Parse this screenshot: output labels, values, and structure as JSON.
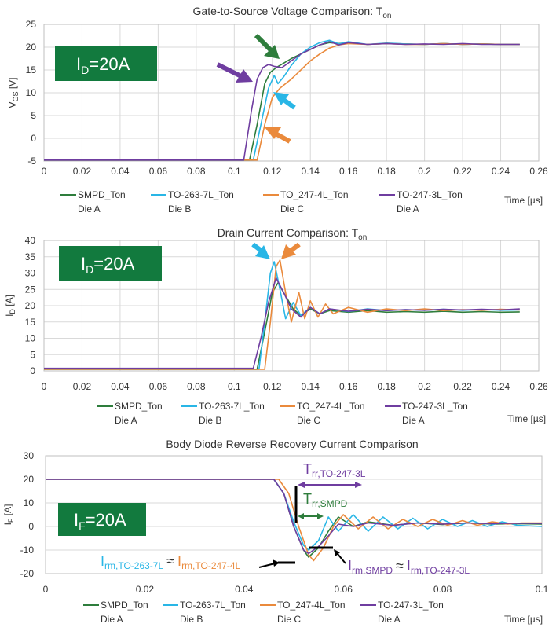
{
  "colors": {
    "SMPD": "#2e7d3c",
    "TO263": "#29b6e6",
    "TO247_4L": "#ea8a3c",
    "TO247_3L": "#6f3da0",
    "badge": "#127a3e",
    "black": "#000000"
  },
  "chart_data": [
    {
      "type": "line",
      "title": "Gate-to-Source Voltage Comparison: T",
      "title_sub": "on",
      "xlabel": "Time [µs]",
      "ylabel_main": "V",
      "ylabel_sub": "GS",
      "ylabel_tail": " [V]",
      "xlim": [
        0,
        0.26
      ],
      "ylim": [
        -5,
        25
      ],
      "xticks": [
        "0",
        "0.02",
        "0.04",
        "0.06",
        "0.08",
        "0.1",
        "0.12",
        "0.14",
        "0.16",
        "0.18",
        "0.2",
        "0.22",
        "0.24",
        "0.26"
      ],
      "xtick_values": [
        0,
        0.02,
        0.04,
        0.06,
        0.08,
        0.1,
        0.12,
        0.14,
        0.16,
        0.18,
        0.2,
        0.22,
        0.24,
        0.26
      ],
      "yticks": [
        "-5",
        "0",
        "5",
        "10",
        "15",
        "20",
        "25"
      ],
      "ytick_values": [
        -5,
        0,
        5,
        10,
        15,
        20,
        25
      ],
      "badge": {
        "main": "I",
        "sub": "D",
        "tail": "=20A"
      },
      "series": [
        {
          "name": "SMPD_Ton",
          "die": "Die A",
          "color_key": "SMPD",
          "x": [
            0,
            0.108,
            0.112,
            0.116,
            0.119,
            0.122,
            0.126,
            0.13,
            0.135,
            0.14,
            0.145,
            0.15,
            0.155,
            0.16,
            0.17,
            0.18,
            0.19,
            0.2,
            0.21,
            0.22,
            0.23,
            0.24,
            0.25
          ],
          "y": [
            -4.8,
            -4.8,
            3,
            12,
            14.5,
            15.5,
            16.5,
            17.5,
            18.5,
            19.5,
            20.5,
            21,
            20.8,
            21,
            20.6,
            20.8,
            20.7,
            20.6,
            20.8,
            20.6,
            20.7,
            20.6,
            20.6
          ]
        },
        {
          "name": "TO-263-7L_Ton",
          "die": "Die B",
          "color_key": "TO263",
          "x": [
            0,
            0.11,
            0.114,
            0.118,
            0.121,
            0.123,
            0.126,
            0.13,
            0.135,
            0.14,
            0.145,
            0.15,
            0.155,
            0.16,
            0.17,
            0.18,
            0.19,
            0.2,
            0.21,
            0.22,
            0.23,
            0.24,
            0.25
          ],
          "y": [
            -4.8,
            -4.8,
            3,
            11,
            13.8,
            12,
            13.5,
            16,
            18.5,
            20,
            21,
            21.5,
            20.7,
            21.2,
            20.6,
            20.9,
            20.7,
            20.6,
            20.8,
            20.6,
            20.7,
            20.6,
            20.6
          ]
        },
        {
          "name": "TO_247-4L_Ton",
          "die": "Die C",
          "color_key": "TO247_4L",
          "x": [
            0,
            0.112,
            0.116,
            0.12,
            0.124,
            0.127,
            0.13,
            0.135,
            0.14,
            0.145,
            0.15,
            0.155,
            0.16,
            0.17,
            0.18,
            0.19,
            0.2,
            0.21,
            0.22,
            0.23,
            0.24,
            0.25
          ],
          "y": [
            -4.8,
            -4.8,
            3,
            9,
            11,
            12,
            13,
            15,
            17,
            18.5,
            19.8,
            20.5,
            20.8,
            20.6,
            20.8,
            20.6,
            20.6,
            20.8,
            20.6,
            20.7,
            20.6,
            20.6
          ]
        },
        {
          "name": "TO-247-3L_Ton",
          "die": "Die A",
          "color_key": "TO247_3L",
          "x": [
            0,
            0.105,
            0.109,
            0.112,
            0.115,
            0.118,
            0.121,
            0.125,
            0.13,
            0.135,
            0.14,
            0.145,
            0.15,
            0.155,
            0.16,
            0.17,
            0.18,
            0.19,
            0.2,
            0.21,
            0.22,
            0.23,
            0.24,
            0.25
          ],
          "y": [
            -4.8,
            -4.8,
            6,
            13,
            15.5,
            16.2,
            15.8,
            15.5,
            17,
            18.5,
            19.5,
            20.5,
            21.2,
            20.5,
            21,
            20.6,
            20.8,
            20.6,
            20.7,
            20.6,
            20.8,
            20.6,
            20.6,
            20.6
          ]
        }
      ]
    },
    {
      "type": "line",
      "title": "Drain Current Comparison: T",
      "title_sub": "on",
      "xlabel": "Time [µs]",
      "ylabel_main": "I",
      "ylabel_sub": "D",
      "ylabel_tail": " [A]",
      "xlim": [
        0,
        0.26
      ],
      "ylim": [
        0,
        40
      ],
      "xticks": [
        "0",
        "0.02",
        "0.04",
        "0.06",
        "0.08",
        "0.1",
        "0.12",
        "0.14",
        "0.16",
        "0.18",
        "0.2",
        "0.22",
        "0.24",
        "0.26"
      ],
      "xtick_values": [
        0,
        0.02,
        0.04,
        0.06,
        0.08,
        0.1,
        0.12,
        0.14,
        0.16,
        0.18,
        0.2,
        0.22,
        0.24,
        0.26
      ],
      "yticks": [
        "0",
        "5",
        "10",
        "15",
        "20",
        "25",
        "30",
        "35",
        "40"
      ],
      "ytick_values": [
        0,
        5,
        10,
        15,
        20,
        25,
        30,
        35,
        40
      ],
      "badge": {
        "main": "I",
        "sub": "D",
        "tail": "=20A"
      },
      "series": [
        {
          "name": "SMPD_Ton",
          "die": "Die A",
          "color_key": "SMPD",
          "x": [
            0,
            0.112,
            0.116,
            0.12,
            0.123,
            0.127,
            0.131,
            0.135,
            0.14,
            0.145,
            0.15,
            0.16,
            0.17,
            0.18,
            0.19,
            0.2,
            0.21,
            0.22,
            0.23,
            0.24,
            0.25
          ],
          "y": [
            0.5,
            0.5,
            12,
            24,
            27,
            23,
            19,
            17,
            19,
            17.5,
            18.5,
            18,
            18.5,
            18,
            18.2,
            18,
            18.3,
            18,
            18.2,
            18,
            18.1
          ]
        },
        {
          "name": "TO-263-7L_Ton",
          "die": "Die B",
          "color_key": "TO263",
          "x": [
            0,
            0.113,
            0.116,
            0.119,
            0.121,
            0.124,
            0.127,
            0.131,
            0.135,
            0.14,
            0.145,
            0.15,
            0.16,
            0.17,
            0.18,
            0.19,
            0.2,
            0.21,
            0.22,
            0.23,
            0.24,
            0.25
          ],
          "y": [
            0.5,
            0.5,
            15,
            30,
            33.5,
            25,
            16,
            21,
            17,
            19.5,
            17.5,
            19,
            18.2,
            19,
            18.5,
            18.8,
            18.6,
            18.9,
            18.6,
            18.8,
            18.6,
            18.7
          ]
        },
        {
          "name": "TO_247-4L_Ton",
          "die": "Die C",
          "color_key": "TO247_4L",
          "x": [
            0,
            0.116,
            0.119,
            0.122,
            0.124,
            0.127,
            0.13,
            0.134,
            0.137,
            0.14,
            0.144,
            0.148,
            0.152,
            0.16,
            0.17,
            0.18,
            0.19,
            0.2,
            0.21,
            0.22,
            0.23,
            0.24,
            0.25
          ],
          "y": [
            0.5,
            0.5,
            15,
            32,
            34,
            24,
            15,
            24,
            16,
            21.5,
            16.5,
            20.5,
            17.5,
            19.5,
            18,
            19,
            18.5,
            19,
            18.5,
            18.8,
            18.6,
            18.9,
            18.7
          ]
        },
        {
          "name": "TO-247-3L_Ton",
          "die": "Die A",
          "color_key": "TO247_3L",
          "x": [
            0,
            0.11,
            0.114,
            0.118,
            0.122,
            0.126,
            0.13,
            0.135,
            0.14,
            0.145,
            0.15,
            0.16,
            0.17,
            0.18,
            0.19,
            0.2,
            0.21,
            0.22,
            0.23,
            0.24,
            0.25
          ],
          "y": [
            0.8,
            0.8,
            10,
            21,
            28.5,
            24,
            19,
            16.5,
            19.5,
            17.5,
            19,
            18.3,
            18.9,
            18.5,
            18.8,
            18.6,
            18.9,
            18.7,
            18.9,
            18.7,
            19
          ]
        }
      ]
    },
    {
      "type": "line",
      "title": "Body Diode Reverse Recovery Current Comparison",
      "xlabel": "Time [µs]",
      "ylabel_main": "I",
      "ylabel_sub": "F",
      "ylabel_tail": " [A]",
      "xlim": [
        0,
        0.1
      ],
      "ylim": [
        -20,
        30
      ],
      "xticks": [
        "0",
        "0.02",
        "0.04",
        "0.06",
        "0.08",
        "0.1"
      ],
      "xtick_values": [
        0,
        0.02,
        0.04,
        0.06,
        0.08,
        0.1
      ],
      "yticks": [
        "-20",
        "-10",
        "0",
        "10",
        "20",
        "30"
      ],
      "ytick_values": [
        -20,
        -10,
        0,
        10,
        20,
        30
      ],
      "badge": {
        "main": "I",
        "sub": "F",
        "tail": "=20A"
      },
      "series": [
        {
          "name": "SMPD_Ton",
          "die": "Die A",
          "color_key": "SMPD",
          "x": [
            0,
            0.046,
            0.048,
            0.05,
            0.052,
            0.053,
            0.055,
            0.057,
            0.059,
            0.062,
            0.065,
            0.07,
            0.075,
            0.08,
            0.085,
            0.09,
            0.095,
            0.1
          ],
          "y": [
            20,
            20,
            14,
            0,
            -10,
            -13,
            -9,
            -2,
            4,
            0,
            2,
            0.5,
            1.5,
            0.8,
            1.5,
            1,
            1.2,
            1
          ]
        },
        {
          "name": "TO-263-7L_Ton",
          "die": "Die B",
          "color_key": "TO263",
          "x": [
            0,
            0.046,
            0.048,
            0.05,
            0.052,
            0.053,
            0.055,
            0.057,
            0.059,
            0.062,
            0.065,
            0.068,
            0.071,
            0.074,
            0.077,
            0.08,
            0.083,
            0.086,
            0.089,
            0.092,
            0.095,
            0.1
          ],
          "y": [
            20,
            20,
            14,
            2,
            -8,
            -10,
            -6,
            4,
            -2,
            5,
            -2,
            4,
            -1,
            3.5,
            -1,
            3,
            0,
            2.5,
            0,
            2,
            0.5,
            0
          ]
        },
        {
          "name": "TO_247-4L_Ton",
          "die": "Die C",
          "color_key": "TO247_4L",
          "x": [
            0,
            0.047,
            0.049,
            0.051,
            0.053,
            0.054,
            0.056,
            0.058,
            0.06,
            0.063,
            0.066,
            0.069,
            0.072,
            0.075,
            0.078,
            0.081,
            0.084,
            0.087,
            0.09,
            0.093,
            0.096,
            0.1
          ],
          "y": [
            20,
            20,
            14,
            0,
            -12,
            -14.5,
            -9,
            0,
            5,
            -1,
            4,
            -1,
            3,
            0,
            3,
            0.5,
            2.5,
            0.5,
            2,
            1,
            1.5,
            1.5
          ]
        },
        {
          "name": "TO-247-3L_Ton",
          "die": "Die A",
          "color_key": "TO247_3L",
          "x": [
            0,
            0.046,
            0.048,
            0.05,
            0.052,
            0.053,
            0.055,
            0.057,
            0.059,
            0.062,
            0.065,
            0.07,
            0.075,
            0.08,
            0.085,
            0.09,
            0.095,
            0.1
          ],
          "y": [
            20,
            20,
            14,
            0,
            -10,
            -11.5,
            -8.5,
            -4,
            1,
            0,
            1.5,
            0.5,
            1.5,
            1,
            1.5,
            1.2,
            1.4,
            1.3
          ]
        }
      ]
    }
  ],
  "annotations": {
    "trr_tol_main": "T",
    "trr_tol_sub": "rr,TO-247-3L",
    "trr_smpd_main": "T",
    "trr_smpd_sub": "rr,SMPD",
    "irm_left_a_main": "I",
    "irm_left_a_sub": "rm,TO-263-7L",
    "irm_approx_1": "≈",
    "irm_left_b_main": "I",
    "irm_left_b_sub": "rm,TO-247-4L",
    "irm_right_a_main": "I",
    "irm_right_a_sub": "rm,SMPD",
    "irm_approx_2": "≈",
    "irm_right_b_main": "I",
    "irm_right_b_sub": "rm,TO-247-3L"
  }
}
